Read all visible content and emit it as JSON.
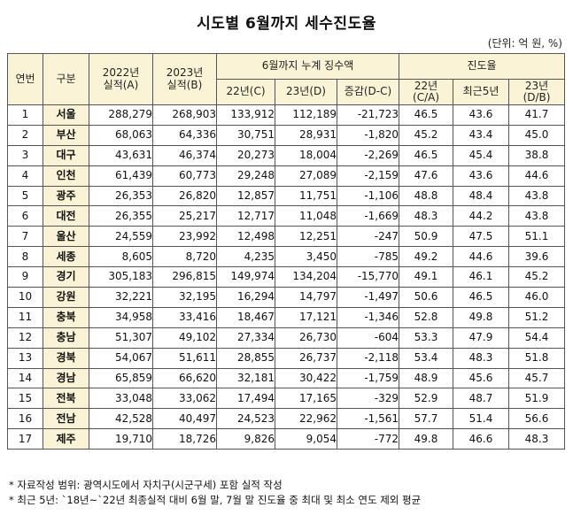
{
  "title": "시도별 6월까지 세수진도율",
  "unit": "(단위: 억 원, %)",
  "header": {
    "rownum": "연번",
    "category": "구분",
    "y2022": "2022년\n실적(A)",
    "y2023": "2023년\n실적(B)",
    "cumulative_group": "6월까지 누계 징수액",
    "progress_group": "진도율",
    "c22": "22년(C)",
    "c23": "23년(D)",
    "diff": "증감(D-C)",
    "p22": "22년\n(C/A)",
    "p5y": "최근5년",
    "p23": "23년\n(D/B)"
  },
  "rows": [
    {
      "no": "1",
      "region": "서울",
      "a2022": "288,279",
      "b2023": "268,903",
      "c22": "133,912",
      "d23": "112,189",
      "diff": "-21,723",
      "p22": "46.5",
      "p5y": "43.6",
      "p23": "41.7"
    },
    {
      "no": "2",
      "region": "부산",
      "a2022": "68,063",
      "b2023": "64,336",
      "c22": "30,751",
      "d23": "28,931",
      "diff": "-1,820",
      "p22": "45.2",
      "p5y": "43.4",
      "p23": "45.0"
    },
    {
      "no": "3",
      "region": "대구",
      "a2022": "43,631",
      "b2023": "46,374",
      "c22": "20,273",
      "d23": "18,004",
      "diff": "-2,269",
      "p22": "46.5",
      "p5y": "45.4",
      "p23": "38.8"
    },
    {
      "no": "4",
      "region": "인천",
      "a2022": "61,439",
      "b2023": "60,773",
      "c22": "29,248",
      "d23": "27,089",
      "diff": "-2,159",
      "p22": "47.6",
      "p5y": "43.6",
      "p23": "44.6"
    },
    {
      "no": "5",
      "region": "광주",
      "a2022": "26,353",
      "b2023": "26,820",
      "c22": "12,857",
      "d23": "11,751",
      "diff": "-1,106",
      "p22": "48.8",
      "p5y": "48.4",
      "p23": "43.8"
    },
    {
      "no": "6",
      "region": "대전",
      "a2022": "26,355",
      "b2023": "25,217",
      "c22": "12,717",
      "d23": "11,048",
      "diff": "-1,669",
      "p22": "48.3",
      "p5y": "44.2",
      "p23": "43.8"
    },
    {
      "no": "7",
      "region": "울산",
      "a2022": "24,559",
      "b2023": "23,992",
      "c22": "12,498",
      "d23": "12,251",
      "diff": "-247",
      "p22": "50.9",
      "p5y": "47.5",
      "p23": "51.1"
    },
    {
      "no": "8",
      "region": "세종",
      "a2022": "8,605",
      "b2023": "8,720",
      "c22": "4,235",
      "d23": "3,450",
      "diff": "-785",
      "p22": "49.2",
      "p5y": "44.6",
      "p23": "39.6"
    },
    {
      "no": "9",
      "region": "경기",
      "a2022": "305,183",
      "b2023": "296,815",
      "c22": "149,974",
      "d23": "134,204",
      "diff": "-15,770",
      "p22": "49.1",
      "p5y": "46.1",
      "p23": "45.2"
    },
    {
      "no": "10",
      "region": "강원",
      "a2022": "32,221",
      "b2023": "32,195",
      "c22": "16,294",
      "d23": "14,797",
      "diff": "-1,497",
      "p22": "50.6",
      "p5y": "46.5",
      "p23": "46.0"
    },
    {
      "no": "11",
      "region": "충북",
      "a2022": "34,958",
      "b2023": "33,416",
      "c22": "18,467",
      "d23": "17,121",
      "diff": "-1,346",
      "p22": "52.8",
      "p5y": "49.8",
      "p23": "51.2"
    },
    {
      "no": "12",
      "region": "충남",
      "a2022": "51,307",
      "b2023": "49,102",
      "c22": "27,334",
      "d23": "26,730",
      "diff": "-604",
      "p22": "53.3",
      "p5y": "47.9",
      "p23": "54.4"
    },
    {
      "no": "13",
      "region": "경북",
      "a2022": "54,067",
      "b2023": "51,611",
      "c22": "28,855",
      "d23": "26,737",
      "diff": "-2,118",
      "p22": "53.4",
      "p5y": "48.3",
      "p23": "51.8"
    },
    {
      "no": "14",
      "region": "경남",
      "a2022": "65,859",
      "b2023": "66,620",
      "c22": "32,181",
      "d23": "30,422",
      "diff": "-1,759",
      "p22": "48.9",
      "p5y": "45.6",
      "p23": "45.7"
    },
    {
      "no": "15",
      "region": "전북",
      "a2022": "33,048",
      "b2023": "33,062",
      "c22": "17,494",
      "d23": "17,165",
      "diff": "-329",
      "p22": "52.9",
      "p5y": "48.7",
      "p23": "51.9"
    },
    {
      "no": "16",
      "region": "전남",
      "a2022": "42,528",
      "b2023": "40,497",
      "c22": "24,523",
      "d23": "22,962",
      "diff": "-1,561",
      "p22": "57.7",
      "p5y": "51.4",
      "p23": "56.6"
    },
    {
      "no": "17",
      "region": "제주",
      "a2022": "19,710",
      "b2023": "18,726",
      "c22": "9,826",
      "d23": "9,054",
      "diff": "-772",
      "p22": "49.8",
      "p5y": "46.6",
      "p23": "48.3"
    }
  ],
  "notes": [
    "* 자료작성 범위: 광역시도에서 자치구(시군구세) 포함 실적 작성",
    "* 최근 5년: `18년~`22년 최종실적 대비 6월 말, 7월 말 진도율 중 최대 및 최소 연도 제외 평균"
  ]
}
